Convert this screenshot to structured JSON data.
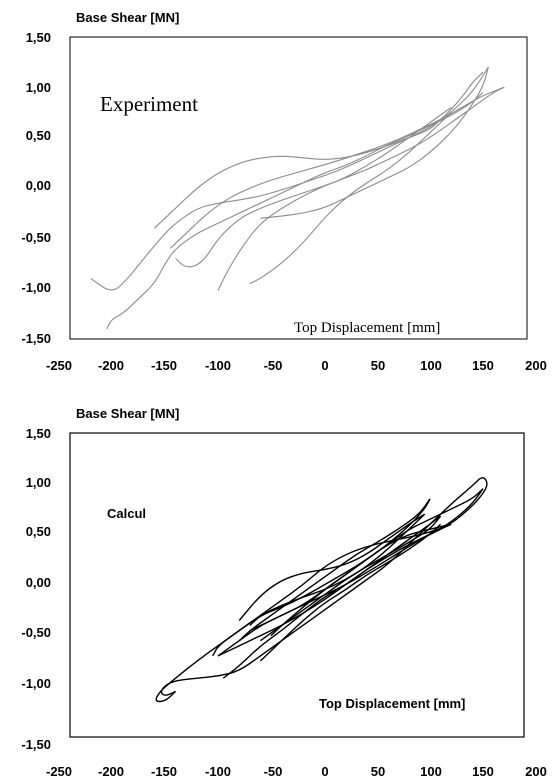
{
  "chart_data": [
    {
      "type": "line",
      "title": "",
      "ylabel": "Base Shear [MN]",
      "xlabel": "Top Displacement [mm]",
      "annotation": "Experiment",
      "xlim": [
        -250,
        200
      ],
      "ylim": [
        -1.5,
        1.5
      ],
      "x_ticks": [
        "-250",
        "-200",
        "-150",
        "-100",
        "-50",
        "0",
        "50",
        "100",
        "150",
        "200"
      ],
      "y_ticks": [
        "1,50",
        "1,00",
        "0,50",
        "0,00",
        "-0,50",
        "-1,00",
        "-1,50"
      ],
      "line_color": "#8c8c8c",
      "series": [
        {
          "x": [
            -220,
            -200,
            -185,
            -170,
            -150,
            -140,
            -120,
            -100,
            -80,
            -60,
            -40,
            -20,
            0,
            20,
            40,
            60,
            80,
            100,
            110,
            120,
            130,
            140,
            150
          ],
          "y": [
            -0.9,
            -1.05,
            -0.9,
            -0.7,
            -0.45,
            -0.35,
            -0.2,
            -0.15,
            -0.12,
            -0.08,
            -0.02,
            0.05,
            0.12,
            0.2,
            0.3,
            0.4,
            0.5,
            0.58,
            0.68,
            0.78,
            0.9,
            1.05,
            1.15
          ]
        },
        {
          "x": [
            150,
            140,
            120,
            100,
            80,
            60,
            40,
            20,
            0,
            -20,
            -40,
            -60,
            -80,
            -100,
            -120,
            -140,
            -150,
            -160,
            -175,
            -190,
            -200,
            -205
          ],
          "y": [
            0.95,
            0.85,
            0.72,
            0.62,
            0.52,
            0.43,
            0.32,
            0.22,
            0.15,
            0.05,
            -0.05,
            -0.15,
            -0.25,
            -0.35,
            -0.45,
            -0.6,
            -0.75,
            -0.95,
            -1.1,
            -1.25,
            -1.3,
            -1.4
          ]
        },
        {
          "x": [
            -140,
            -130,
            -115,
            -100,
            -80,
            -60,
            -40,
            -20,
            0,
            20,
            40,
            60,
            80,
            100,
            120,
            140,
            160,
            170
          ],
          "y": [
            -0.7,
            -0.8,
            -0.75,
            -0.5,
            -0.3,
            -0.2,
            -0.12,
            -0.05,
            0.02,
            0.1,
            0.18,
            0.28,
            0.38,
            0.5,
            0.65,
            0.8,
            0.95,
            1.0
          ]
        },
        {
          "x": [
            170,
            150,
            130,
            110,
            90,
            70,
            50,
            30,
            10,
            -10,
            -30,
            -50,
            -70,
            -90,
            -110,
            -130,
            -145
          ],
          "y": [
            1.0,
            0.92,
            0.8,
            0.68,
            0.58,
            0.48,
            0.4,
            0.33,
            0.26,
            0.2,
            0.14,
            0.08,
            0.0,
            -0.1,
            -0.25,
            -0.45,
            -0.6
          ]
        },
        {
          "x": [
            -100,
            -90,
            -75,
            -60,
            -40,
            -20,
            0,
            20,
            40,
            60,
            80,
            100,
            120
          ],
          "y": [
            -1.02,
            -0.8,
            -0.55,
            -0.35,
            -0.2,
            -0.08,
            0.02,
            0.1,
            0.22,
            0.35,
            0.5,
            0.65,
            0.8
          ]
        },
        {
          "x": [
            120,
            100,
            80,
            60,
            40,
            20,
            0,
            -20,
            -40,
            -60,
            -70
          ],
          "y": [
            0.75,
            0.55,
            0.35,
            0.18,
            0.05,
            -0.1,
            -0.3,
            -0.55,
            -0.75,
            -0.9,
            -0.95
          ]
        },
        {
          "x": [
            -160,
            -140,
            -120,
            -100,
            -80,
            -60,
            -40,
            -20,
            0,
            20,
            40,
            60,
            80,
            100,
            120,
            140,
            155
          ],
          "y": [
            -0.4,
            -0.2,
            0.0,
            0.15,
            0.25,
            0.3,
            0.32,
            0.3,
            0.28,
            0.3,
            0.35,
            0.42,
            0.5,
            0.6,
            0.75,
            0.95,
            1.2
          ]
        },
        {
          "x": [
            155,
            150,
            135,
            120,
            100,
            80,
            60,
            40,
            20,
            0,
            -20,
            -40,
            -60
          ],
          "y": [
            1.2,
            1.0,
            0.75,
            0.55,
            0.35,
            0.2,
            0.1,
            0.0,
            -0.1,
            -0.2,
            -0.25,
            -0.28,
            -0.3
          ]
        }
      ]
    },
    {
      "type": "line",
      "title": "",
      "ylabel": "Base Shear [MN]",
      "xlabel": "Top Displacement [mm]",
      "annotation": "Calcul",
      "xlim": [
        -250,
        200
      ],
      "ylim": [
        -1.5,
        1.5
      ],
      "x_ticks": [
        "-250",
        "-200",
        "-150",
        "-100",
        "-50",
        "0",
        "50",
        "100",
        "150",
        "200"
      ],
      "y_ticks": [
        "1,50",
        "1,00",
        "0,50",
        "0,00",
        "-0,50",
        "-1,00",
        "-1,50"
      ],
      "line_color": "#000000",
      "series": [
        {
          "x": [
            -140,
            -150,
            -155,
            -145,
            -120,
            -100,
            -80,
            -60,
            -40,
            -20,
            0,
            20,
            40,
            60,
            80,
            100,
            120,
            140,
            150,
            155,
            150,
            140,
            120,
            100,
            80,
            60,
            40,
            20,
            0,
            -20,
            -40,
            -60,
            -80,
            -100,
            -120,
            -140,
            -155,
            -160,
            -150,
            -140
          ],
          "y": [
            -1.05,
            -1.1,
            -1.05,
            -0.95,
            -0.92,
            -0.9,
            -0.85,
            -0.7,
            -0.55,
            -0.4,
            -0.25,
            -0.1,
            0.05,
            0.2,
            0.4,
            0.6,
            0.8,
            0.98,
            1.08,
            1.0,
            0.9,
            0.78,
            0.6,
            0.52,
            0.47,
            0.43,
            0.38,
            0.3,
            0.18,
            0.0,
            -0.15,
            -0.3,
            -0.45,
            -0.6,
            -0.75,
            -0.92,
            -1.05,
            -1.15,
            -1.15,
            -1.05
          ]
        },
        {
          "x": [
            -100,
            -80,
            -60,
            -40,
            -20,
            0,
            20,
            40,
            60,
            80,
            100,
            120,
            140,
            150
          ],
          "y": [
            -0.7,
            -0.55,
            -0.4,
            -0.3,
            -0.2,
            -0.05,
            0.1,
            0.25,
            0.4,
            0.55,
            0.65,
            0.75,
            0.85,
            0.95
          ]
        },
        {
          "x": [
            150,
            140,
            120,
            100,
            80,
            60,
            40,
            20,
            0,
            -20,
            -40,
            -60,
            -80,
            -95
          ],
          "y": [
            0.95,
            0.8,
            0.62,
            0.5,
            0.4,
            0.28,
            0.15,
            0.0,
            -0.12,
            -0.28,
            -0.45,
            -0.6,
            -0.8,
            -0.92
          ]
        },
        {
          "x": [
            -100,
            -80,
            -60,
            -40,
            -20,
            0,
            20,
            40,
            60,
            80,
            100,
            110
          ],
          "y": [
            -0.7,
            -0.6,
            -0.5,
            -0.4,
            -0.28,
            -0.15,
            0.0,
            0.15,
            0.3,
            0.45,
            0.6,
            0.68
          ]
        },
        {
          "x": [
            110,
            100,
            80,
            60,
            40,
            20,
            0,
            -20,
            -40,
            -60,
            -80,
            -100,
            -105
          ],
          "y": [
            0.68,
            0.55,
            0.42,
            0.3,
            0.18,
            0.05,
            -0.05,
            -0.12,
            -0.2,
            -0.3,
            -0.45,
            -0.6,
            -0.7
          ]
        },
        {
          "x": [
            -70,
            -60,
            -40,
            -20,
            0,
            20,
            40,
            60,
            80,
            95,
            100
          ],
          "y": [
            -0.4,
            -0.3,
            -0.22,
            -0.12,
            0.0,
            0.12,
            0.25,
            0.4,
            0.58,
            0.75,
            0.85
          ]
        },
        {
          "x": [
            100,
            90,
            70,
            50,
            30,
            10,
            -10,
            -30,
            -50,
            -70,
            -80
          ],
          "y": [
            0.85,
            0.7,
            0.55,
            0.42,
            0.3,
            0.15,
            0.0,
            -0.15,
            -0.3,
            -0.45,
            -0.55
          ]
        },
        {
          "x": [
            -50,
            -40,
            -20,
            0,
            20,
            40,
            60,
            80,
            100,
            120
          ],
          "y": [
            -0.5,
            -0.4,
            -0.22,
            -0.05,
            0.1,
            0.25,
            0.4,
            0.5,
            0.55,
            0.6
          ]
        },
        {
          "x": [
            120,
            100,
            80,
            60,
            40,
            20,
            0,
            -20,
            -40,
            -60,
            -70
          ],
          "y": [
            0.6,
            0.5,
            0.38,
            0.25,
            0.12,
            0.0,
            -0.1,
            -0.2,
            -0.3,
            -0.4,
            -0.45
          ]
        },
        {
          "x": [
            -80,
            -60,
            -40,
            -20,
            0,
            20,
            40,
            60,
            80,
            95
          ],
          "y": [
            -0.35,
            -0.1,
            0.05,
            0.12,
            0.15,
            0.2,
            0.3,
            0.45,
            0.6,
            0.7
          ]
        },
        {
          "x": [
            95,
            80,
            60,
            40,
            20,
            0,
            -20,
            -40,
            -60
          ],
          "y": [
            0.7,
            0.55,
            0.35,
            0.18,
            0.05,
            -0.1,
            -0.25,
            -0.4,
            -0.55
          ]
        },
        {
          "x": [
            -60,
            -40,
            -20,
            0,
            20,
            40,
            60,
            80,
            100,
            110
          ],
          "y": [
            -0.75,
            -0.55,
            -0.35,
            -0.18,
            -0.05,
            0.1,
            0.22,
            0.35,
            0.5,
            0.6
          ]
        }
      ]
    }
  ]
}
